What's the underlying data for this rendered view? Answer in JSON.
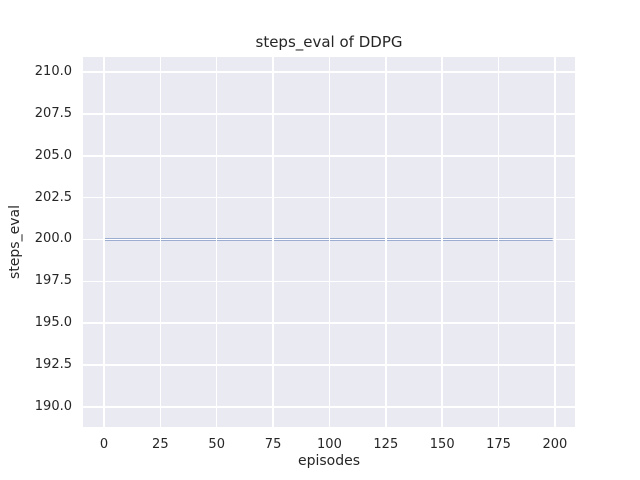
{
  "figure": {
    "background_color": "#ffffff",
    "plot_background_color": "#eaeaf2",
    "grid_color": "#ffffff",
    "text_color": "#262626"
  },
  "chart_data": {
    "type": "line",
    "title": "steps_eval of DDPG",
    "xlabel": "episodes",
    "ylabel": "steps_eval",
    "xlim": [
      -9.3,
      208.9
    ],
    "ylim": [
      188.8,
      210.9
    ],
    "grid": true,
    "legend": "none",
    "xticks": {
      "values": [
        0,
        25,
        50,
        75,
        100,
        125,
        150,
        175,
        200
      ],
      "labels": [
        "0",
        "25",
        "50",
        "75",
        "100",
        "125",
        "150",
        "175",
        "200"
      ]
    },
    "yticks": {
      "values": [
        190.0,
        192.5,
        195.0,
        197.5,
        200.0,
        202.5,
        205.0,
        207.5,
        210.0
      ],
      "labels": [
        "190.0",
        "192.5",
        "195.0",
        "197.5",
        "200.0",
        "202.5",
        "205.0",
        "207.5",
        "210.0"
      ]
    },
    "series": [
      {
        "name": "steps_eval of DDPG",
        "color": "#4c72b0",
        "line_width": 2,
        "x": [
          0,
          199
        ],
        "y": [
          200,
          200
        ],
        "note": "constant value 200 across all episodes 0-199"
      }
    ]
  }
}
